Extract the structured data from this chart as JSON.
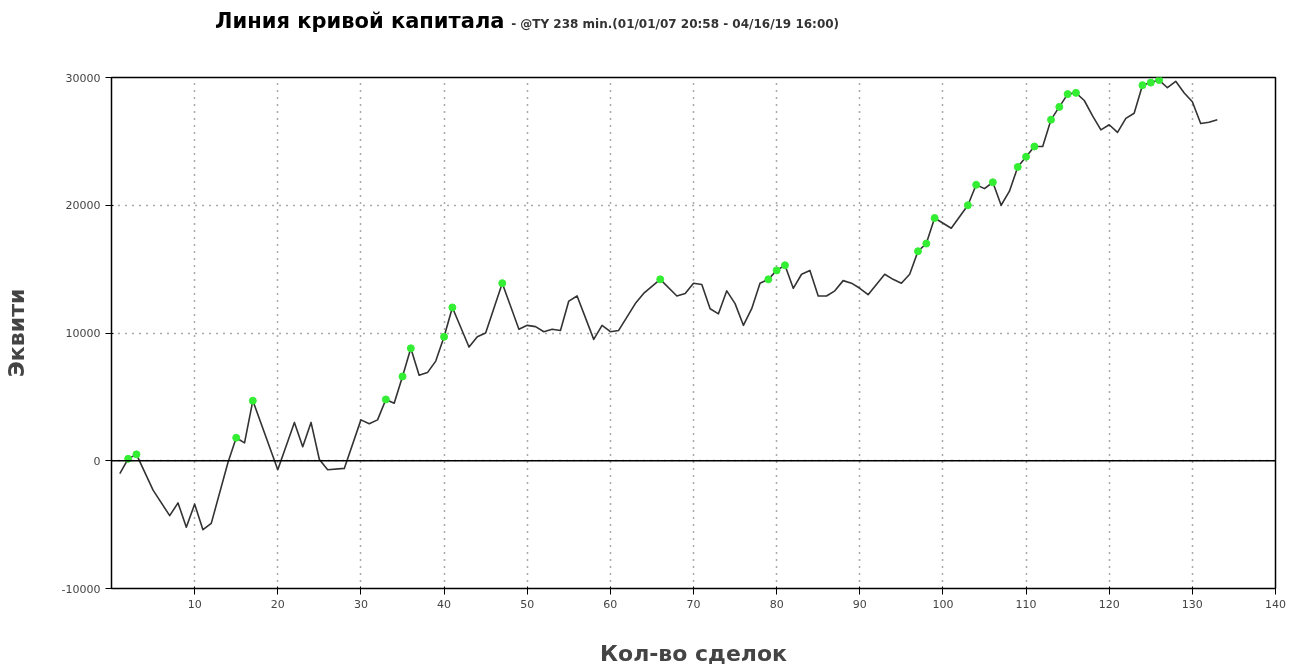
{
  "chart_data": {
    "type": "line",
    "title": "Линия кривой капитала",
    "subtitle": "- @TY 238 min.(01/01/07 20:58 - 04/16/19 16:00)",
    "xlabel": "Кол-во сделок",
    "ylabel": "Эквити",
    "xlim": [
      0,
      140
    ],
    "xticks": [
      10,
      20,
      30,
      40,
      50,
      60,
      70,
      80,
      90,
      100,
      110,
      120,
      130,
      140
    ],
    "ylim": [
      -10000,
      30000
    ],
    "yticks": [
      -10000,
      0,
      10000,
      20000,
      30000
    ],
    "grid": true,
    "ref_lines": [
      {
        "axis": "y",
        "value": 0,
        "color": "#000000",
        "line_style": "solid"
      }
    ],
    "series": [
      {
        "color": "#333333",
        "marker": "none",
        "line_style": "solid",
        "x": [
          1,
          2,
          3,
          5,
          7,
          8,
          9,
          10,
          11,
          12,
          14,
          15,
          16,
          17,
          20,
          22,
          23,
          24,
          25,
          26,
          28,
          30,
          31,
          32,
          33,
          34,
          35,
          36,
          37,
          38,
          39,
          40,
          41,
          43,
          44,
          45,
          47,
          49,
          50,
          51,
          52,
          53,
          54,
          55,
          56,
          58,
          59,
          60,
          61,
          63,
          64,
          66,
          68,
          69,
          70,
          71,
          72,
          73,
          74,
          75,
          76,
          77,
          78,
          79,
          80,
          81,
          82,
          83,
          84,
          85,
          86,
          87,
          88,
          89,
          90,
          91,
          92,
          93,
          94,
          95,
          96,
          97,
          98,
          99,
          101,
          103,
          104,
          105,
          106,
          107,
          108,
          109,
          110,
          111,
          112,
          113,
          114,
          115,
          116,
          117,
          118,
          119,
          120,
          121,
          122,
          123,
          124,
          125,
          126,
          127,
          128,
          129,
          130,
          131,
          132,
          133
        ],
        "values": [
          -1000,
          150,
          500,
          -2300,
          -4300,
          -3300,
          -5200,
          -3400,
          -5400,
          -4900,
          -150,
          1800,
          1400,
          4700,
          -700,
          3000,
          1100,
          3000,
          100,
          -700,
          -600,
          3200,
          2900,
          3200,
          4800,
          4500,
          6600,
          8800,
          6700,
          6900,
          7800,
          9700,
          12000,
          8900,
          9700,
          10000,
          13900,
          10300,
          10600,
          10500,
          10100,
          10300,
          10200,
          12500,
          12900,
          9500,
          10600,
          10100,
          10200,
          12300,
          13100,
          14200,
          12900,
          13100,
          13900,
          13800,
          11900,
          11500,
          13300,
          12300,
          10600,
          11900,
          13900,
          14200,
          14900,
          15300,
          13500,
          14600,
          14900,
          12900,
          12900,
          13300,
          14100,
          13900,
          13500,
          13000,
          13800,
          14600,
          14200,
          13900,
          14600,
          16400,
          17000,
          19000,
          18200,
          20000,
          21600,
          21300,
          21800,
          20000,
          21100,
          23000,
          23800,
          24600,
          24600,
          26700,
          27700,
          28700,
          28800,
          28200,
          27000,
          25900,
          26300,
          25700,
          26800,
          27200,
          29400,
          29600,
          29800,
          29200,
          29700,
          28800,
          28100,
          26400,
          26500,
          26700
        ]
      },
      {
        "type": "scatter",
        "color": "#33ee33",
        "marker": "circle",
        "x": [
          2,
          3,
          15,
          17,
          33,
          35,
          36,
          40,
          41,
          47,
          66,
          79,
          80,
          81,
          97,
          98,
          99,
          103,
          104,
          106,
          109,
          110,
          111,
          113,
          114,
          115,
          116,
          124,
          125,
          126
        ],
        "values": [
          150,
          500,
          1800,
          4700,
          4800,
          6600,
          8800,
          9700,
          12000,
          13900,
          14200,
          14200,
          14900,
          15300,
          16400,
          17000,
          19000,
          20000,
          21600,
          21800,
          23000,
          23800,
          24600,
          26700,
          27700,
          28700,
          28800,
          29400,
          29600,
          29800
        ]
      }
    ]
  }
}
